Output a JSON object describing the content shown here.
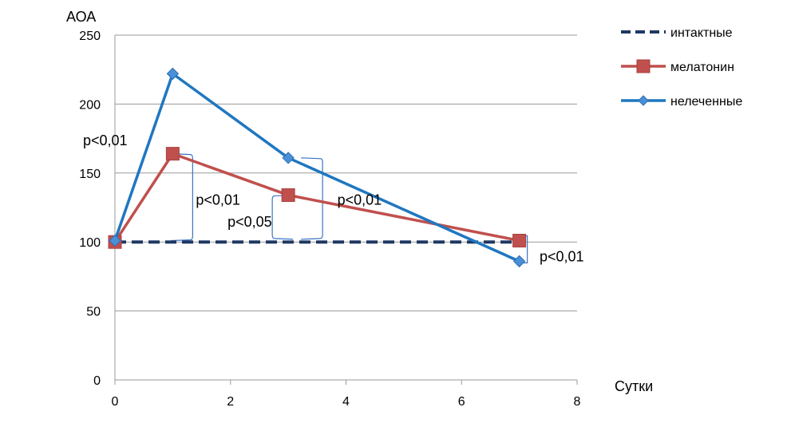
{
  "chart_data": {
    "type": "line",
    "title": "",
    "ylabel": "АОА",
    "xlabel": "Сутки",
    "xlim": [
      0,
      8
    ],
    "ylim": [
      0,
      250
    ],
    "xticks": [
      "0",
      "2",
      "4",
      "6",
      "8"
    ],
    "yticks": [
      "0",
      "50",
      "100",
      "150",
      "200",
      "250"
    ],
    "grid": "horizontal",
    "legend_position": "right",
    "series": [
      {
        "name": "интактные",
        "color": "#1f3864",
        "style": "dashed",
        "marker": "none",
        "points": [
          [
            0,
            100
          ],
          [
            7,
            100
          ]
        ]
      },
      {
        "name": "мелатонин",
        "color": "#c0504d",
        "style": "solid",
        "marker": "square",
        "points": [
          [
            0,
            100
          ],
          [
            1,
            164
          ],
          [
            3,
            134
          ],
          [
            7,
            101
          ]
        ]
      },
      {
        "name": "нелеченные",
        "color": "#1f77c0",
        "style": "solid",
        "marker": "diamond",
        "points": [
          [
            0,
            101
          ],
          [
            1,
            222
          ],
          [
            3,
            161
          ],
          [
            7,
            86
          ]
        ]
      }
    ],
    "annotations": [
      {
        "text": "p<0,01",
        "x": 0,
        "y": 170
      },
      {
        "text": "p<0,01",
        "x": 1.4,
        "y": 127
      },
      {
        "text": "p<0,05",
        "x": 1.95,
        "y": 111
      },
      {
        "text": "p<0,01",
        "x": 3.85,
        "y": 127
      },
      {
        "text": "p<0,01",
        "x": 7.35,
        "y": 86
      }
    ]
  }
}
